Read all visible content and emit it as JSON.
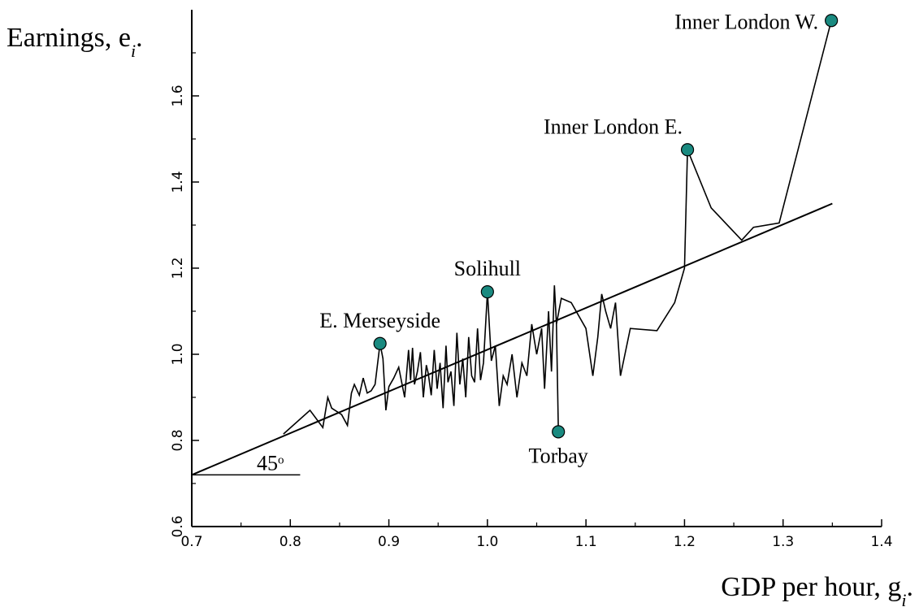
{
  "chart_data": {
    "type": "line",
    "title": "",
    "xlabel": "GDP per hour, g",
    "xlabel_sub": "i",
    "xlabel_tail": ".",
    "ylabel": "Earnings, e",
    "ylabel_sub": "i",
    "ylabel_tail": ".",
    "xlim": [
      0.7,
      1.4
    ],
    "ylim": [
      0.6,
      1.8
    ],
    "xticks": [
      0.7,
      0.8,
      0.9,
      1.0,
      1.1,
      1.2,
      1.3,
      1.4
    ],
    "xtick_labels": [
      "0.7",
      "0.8",
      "0.9",
      "1.0",
      "1.1",
      "1.2",
      "1.3",
      "1.4"
    ],
    "yticks": [
      0.6,
      0.8,
      1.0,
      1.2,
      1.4,
      1.6
    ],
    "ytick_labels": [
      "0.6",
      "0.8",
      "1.0",
      "1.2",
      "1.4",
      "1.6"
    ],
    "grid": false,
    "reference_line": {
      "x": [
        0.7,
        1.35
      ],
      "y": [
        0.72,
        1.35
      ]
    },
    "angle_label": {
      "text": "45",
      "superscript": "o"
    },
    "series": [
      {
        "x": [
          0.793,
          0.82,
          0.833,
          0.838,
          0.842,
          0.852,
          0.858,
          0.862,
          0.865,
          0.87,
          0.874,
          0.878,
          0.882,
          0.886,
          0.891,
          0.894,
          0.897,
          0.9,
          0.905,
          0.91,
          0.916,
          0.92,
          0.922,
          0.924,
          0.926,
          0.929,
          0.932,
          0.935,
          0.938,
          0.94,
          0.943,
          0.946,
          0.949,
          0.952,
          0.955,
          0.958,
          0.96,
          0.963,
          0.966,
          0.969,
          0.972,
          0.975,
          0.978,
          0.981,
          0.984,
          0.987,
          0.99,
          0.993,
          0.996,
          1.0,
          1.004,
          1.008,
          1.012,
          1.016,
          1.02,
          1.025,
          1.03,
          1.035,
          1.04,
          1.045,
          1.05,
          1.055,
          1.058,
          1.062,
          1.065,
          1.068,
          1.07,
          1.072,
          1.07,
          1.075,
          1.085,
          1.1,
          1.107,
          1.112,
          1.116,
          1.12,
          1.125,
          1.13,
          1.135,
          1.145,
          1.172,
          1.19,
          1.2,
          1.203,
          1.227,
          1.258,
          1.27,
          1.296,
          1.349
        ],
        "y": [
          0.815,
          0.87,
          0.83,
          0.9,
          0.875,
          0.86,
          0.835,
          0.91,
          0.93,
          0.905,
          0.945,
          0.91,
          0.915,
          0.93,
          1.025,
          0.99,
          0.87,
          0.925,
          0.945,
          0.97,
          0.9,
          1.01,
          0.94,
          1.015,
          0.93,
          0.96,
          1.005,
          0.9,
          0.975,
          0.955,
          0.905,
          1.01,
          0.92,
          0.98,
          0.875,
          1.02,
          0.935,
          0.96,
          0.88,
          1.05,
          0.93,
          0.99,
          0.9,
          1.04,
          0.95,
          0.935,
          1.06,
          0.94,
          0.98,
          1.145,
          0.985,
          1.02,
          0.88,
          0.95,
          0.93,
          1.0,
          0.9,
          0.98,
          0.95,
          1.07,
          1.0,
          1.06,
          0.92,
          1.1,
          0.96,
          1.16,
          1.07,
          0.82,
          1.07,
          1.13,
          1.12,
          1.06,
          0.95,
          1.04,
          1.14,
          1.1,
          1.06,
          1.12,
          0.95,
          1.06,
          1.055,
          1.12,
          1.2,
          1.475,
          1.34,
          1.265,
          1.295,
          1.305,
          1.775
        ]
      }
    ],
    "labeled_points": [
      {
        "label": "Inner London W.",
        "x": 1.349,
        "y": 1.775
      },
      {
        "label": "Inner London E.",
        "x": 1.203,
        "y": 1.475
      },
      {
        "label": "Solihull",
        "x": 1.0,
        "y": 1.145
      },
      {
        "label": "E. Merseyside",
        "x": 0.891,
        "y": 1.025
      },
      {
        "label": "Torbay",
        "x": 1.072,
        "y": 0.82
      }
    ],
    "colors": {
      "marker_fill": "#1a8a80",
      "line": "#000000"
    }
  }
}
